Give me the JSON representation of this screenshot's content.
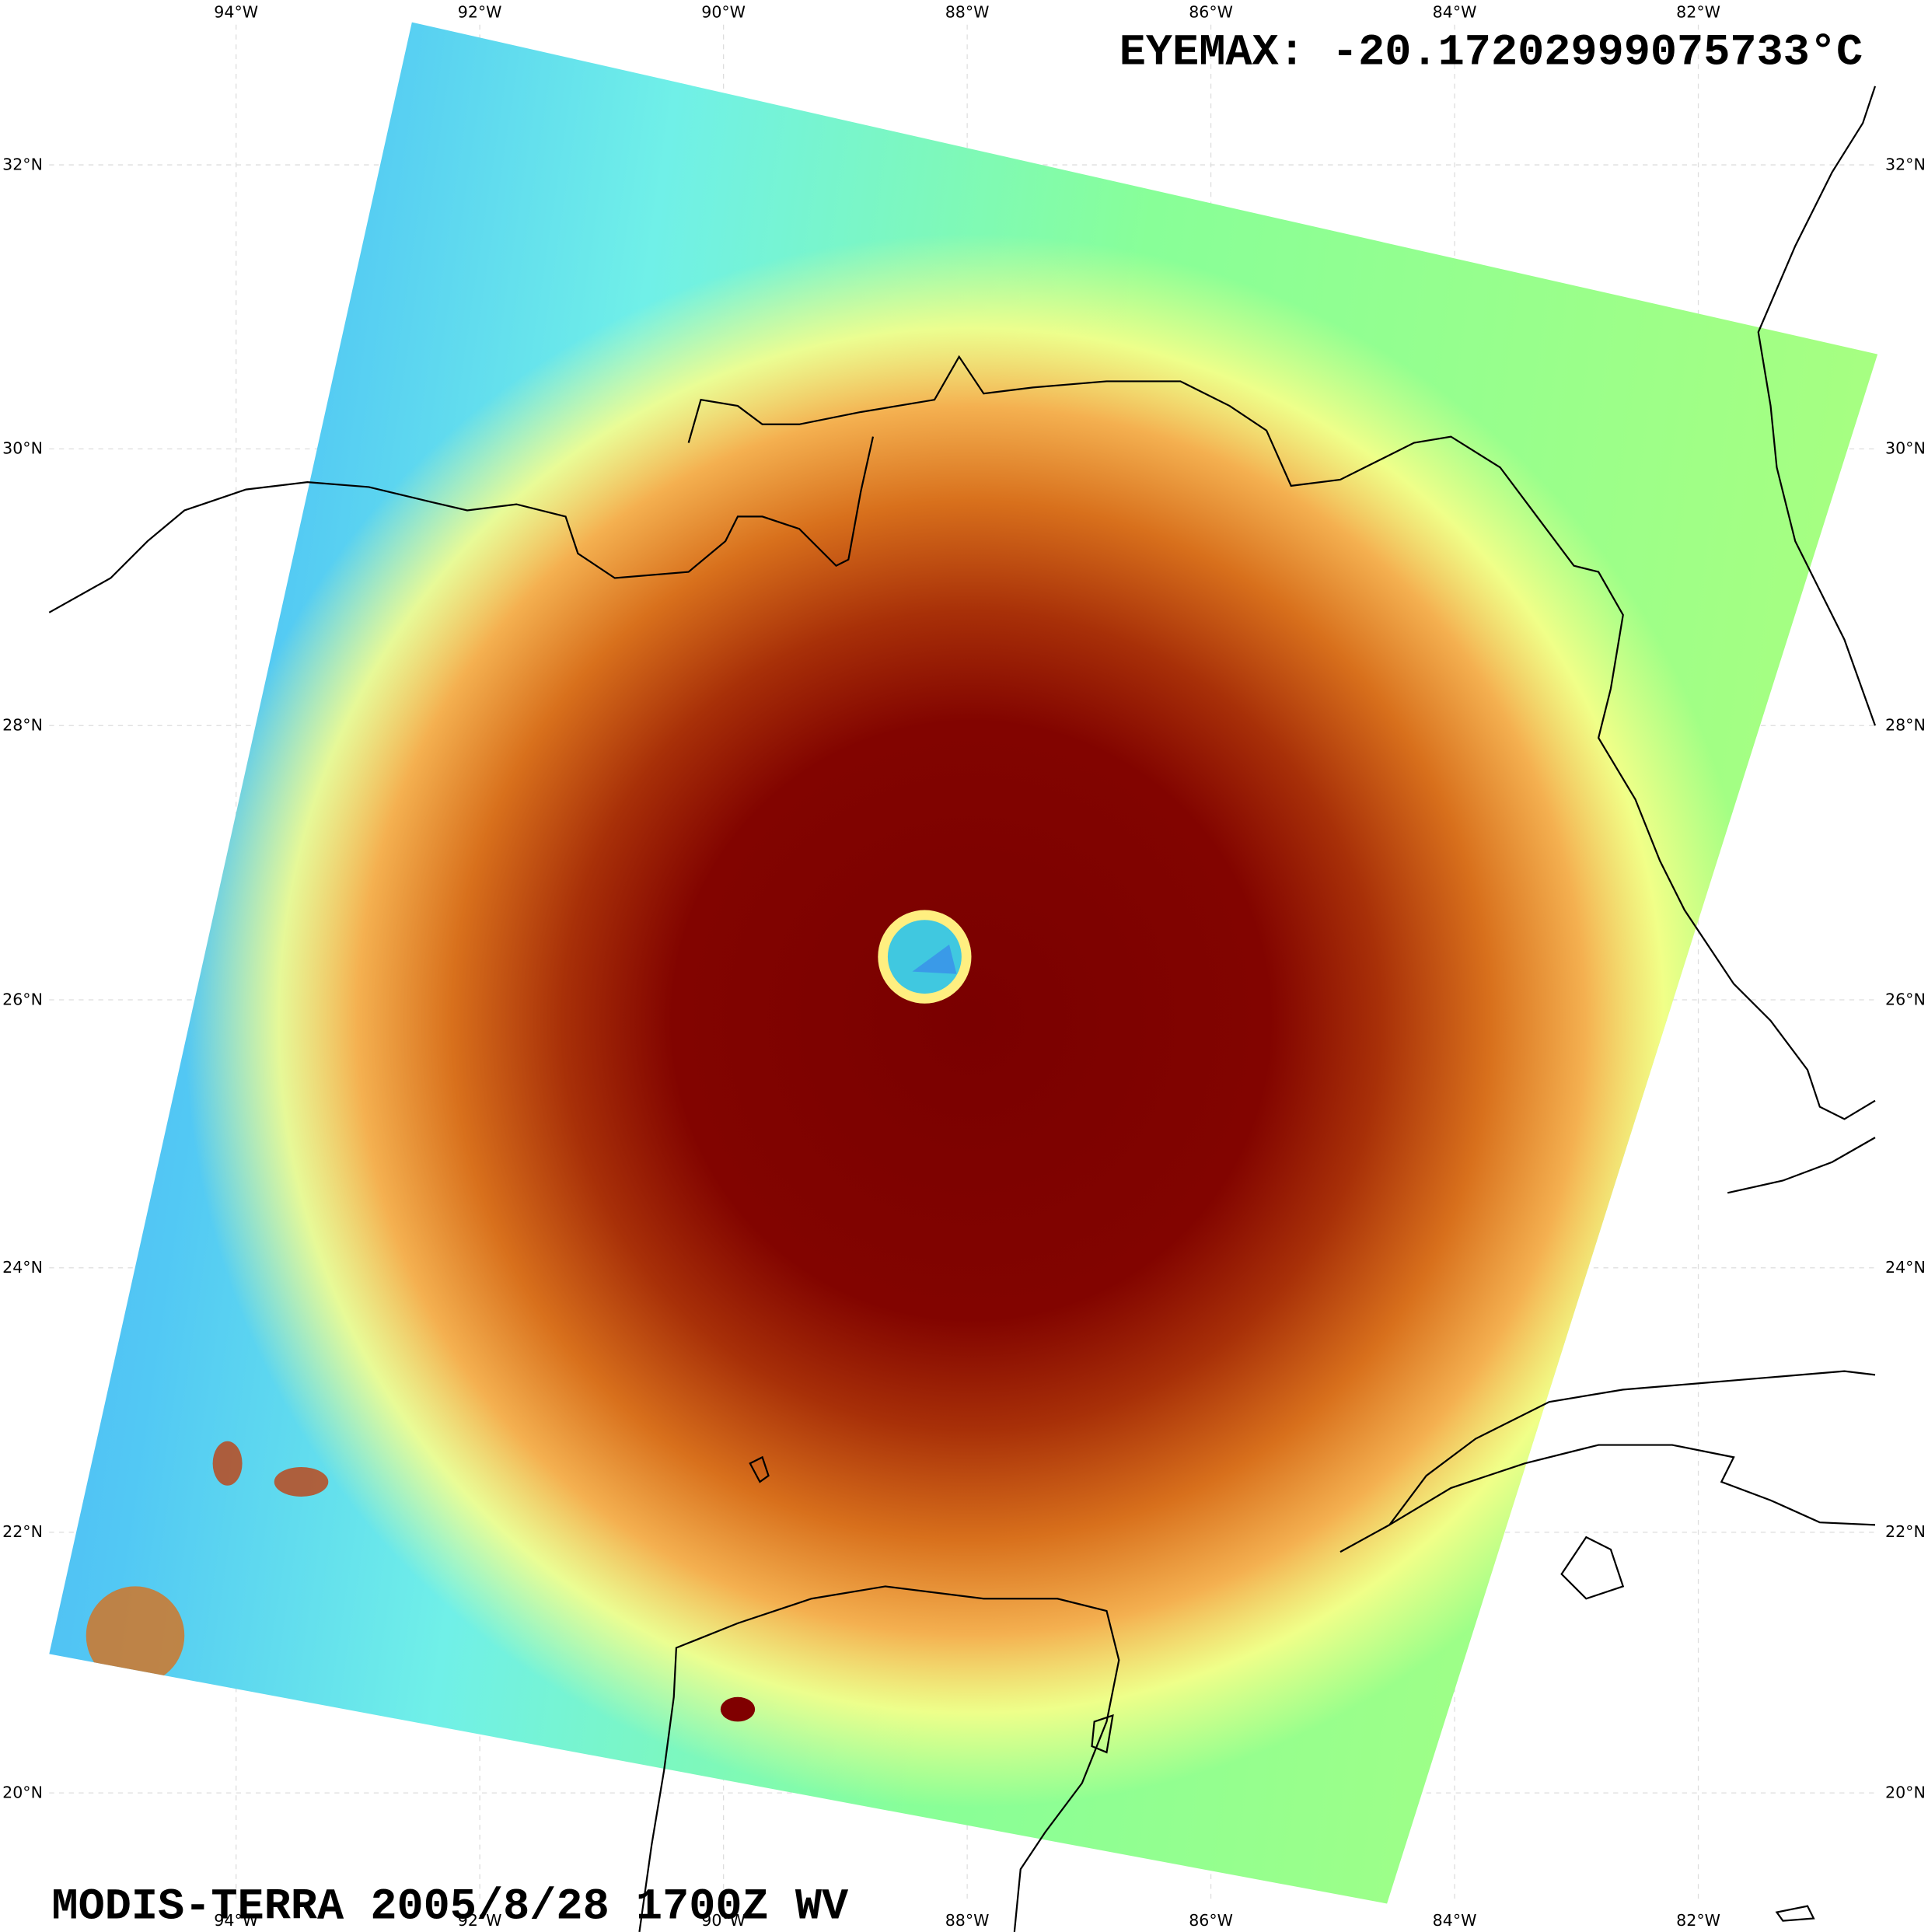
{
  "header": {
    "eyemax": "EYEMAX: -20.17202999075733°C"
  },
  "footer": {
    "caption": "MODIS-TERRA 2005/8/28 1700Z WV"
  },
  "map": {
    "lon_labels": [
      "94°W",
      "92°W",
      "90°W",
      "88°W",
      "86°W",
      "84°W",
      "82°W"
    ],
    "lat_labels": [
      "32°N",
      "30°N",
      "28°N",
      "26°N",
      "24°N",
      "22°N",
      "20°N"
    ]
  }
}
